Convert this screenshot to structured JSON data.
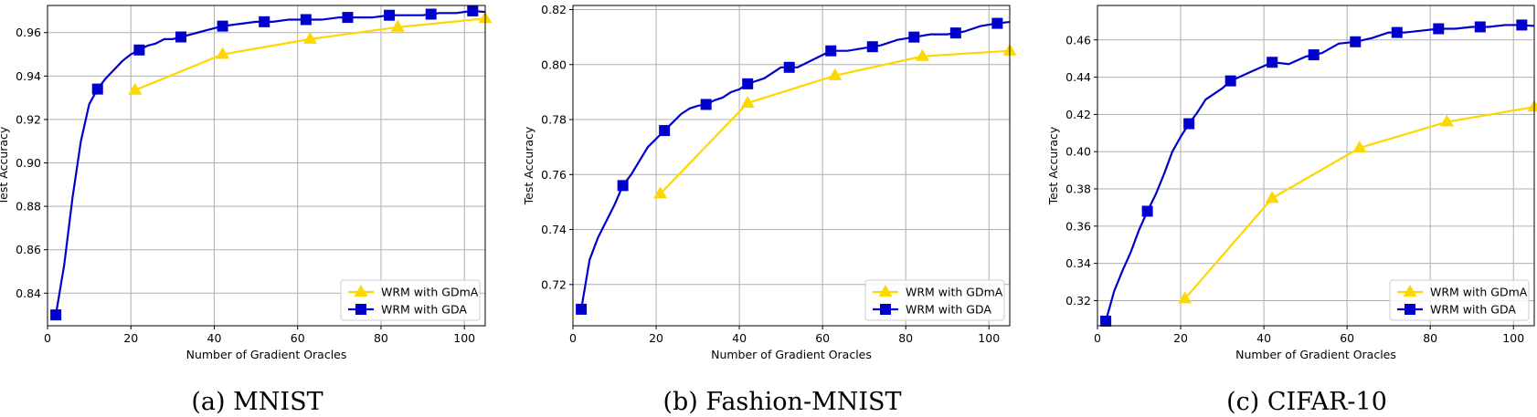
{
  "colors": {
    "gdma": "#ffd700",
    "gda": "#0000cd",
    "grid": "#b0b0b0"
  },
  "chart_data": [
    {
      "type": "line",
      "caption": "(a) MNIST",
      "xlabel": "Number of Gradient Oracles",
      "ylabel": "Test Accuracy",
      "xlim": [
        0,
        105
      ],
      "ylim": [
        0.825,
        0.9725
      ],
      "xticks": [
        0,
        20,
        40,
        60,
        80,
        100
      ],
      "yticks": [
        0.84,
        0.86,
        0.88,
        0.9,
        0.92,
        0.94,
        0.96
      ],
      "ytick_labels": [
        "0.84",
        "0.86",
        "0.88",
        "0.90",
        "0.92",
        "0.94",
        "0.96"
      ],
      "grid": true,
      "legend_position": "lower-right",
      "series": [
        {
          "name": "WRM with GDmA",
          "marker": "triangle",
          "color_key": "gdma",
          "x": [
            21,
            42,
            63,
            84,
            105
          ],
          "y": [
            0.9335,
            0.95,
            0.957,
            0.9625,
            0.9665
          ],
          "marker_x": [
            21,
            42,
            63,
            84,
            105
          ]
        },
        {
          "name": "WRM with GDA",
          "marker": "square",
          "color_key": "gda",
          "x": [
            2,
            4,
            6,
            8,
            10,
            12,
            14,
            16,
            18,
            20,
            22,
            24,
            26,
            28,
            30,
            32,
            34,
            36,
            38,
            40,
            42,
            46,
            50,
            54,
            58,
            62,
            66,
            70,
            74,
            78,
            82,
            86,
            90,
            94,
            98,
            102,
            105
          ],
          "y": [
            0.83,
            0.853,
            0.884,
            0.91,
            0.927,
            0.934,
            0.939,
            0.943,
            0.947,
            0.95,
            0.952,
            0.954,
            0.955,
            0.957,
            0.957,
            0.958,
            0.959,
            0.96,
            0.961,
            0.962,
            0.963,
            0.964,
            0.965,
            0.965,
            0.966,
            0.966,
            0.966,
            0.967,
            0.967,
            0.967,
            0.968,
            0.968,
            0.968,
            0.969,
            0.969,
            0.97,
            0.9695
          ],
          "marker_x": [
            2,
            12,
            22,
            32,
            42,
            52,
            62,
            72,
            82,
            92,
            102
          ]
        }
      ]
    },
    {
      "type": "line",
      "caption": "(b) Fashion-MNIST",
      "xlabel": "Number of Gradient Oracles",
      "ylabel": "Test Accuracy",
      "xlim": [
        0,
        105
      ],
      "ylim": [
        0.705,
        0.8215
      ],
      "xticks": [
        0,
        20,
        40,
        60,
        80,
        100
      ],
      "yticks": [
        0.72,
        0.74,
        0.76,
        0.78,
        0.8,
        0.82
      ],
      "ytick_labels": [
        "0.72",
        "0.74",
        "0.76",
        "0.78",
        "0.80",
        "0.82"
      ],
      "grid": true,
      "legend_position": "lower-right",
      "series": [
        {
          "name": "WRM with GDmA",
          "marker": "triangle",
          "color_key": "gdma",
          "x": [
            21,
            42,
            63,
            84,
            105
          ],
          "y": [
            0.753,
            0.786,
            0.796,
            0.803,
            0.805
          ],
          "marker_x": [
            21,
            42,
            63,
            84,
            105
          ]
        },
        {
          "name": "WRM with GDA",
          "marker": "square",
          "color_key": "gda",
          "x": [
            2,
            4,
            6,
            8,
            10,
            12,
            14,
            16,
            18,
            20,
            22,
            24,
            26,
            28,
            30,
            32,
            34,
            36,
            38,
            40,
            42,
            46,
            50,
            54,
            58,
            62,
            66,
            70,
            74,
            78,
            82,
            86,
            90,
            94,
            98,
            102,
            105
          ],
          "y": [
            0.711,
            0.729,
            0.737,
            0.743,
            0.749,
            0.756,
            0.76,
            0.765,
            0.77,
            0.773,
            0.776,
            0.779,
            0.782,
            0.784,
            0.785,
            0.7855,
            0.787,
            0.788,
            0.79,
            0.791,
            0.793,
            0.795,
            0.799,
            0.799,
            0.802,
            0.805,
            0.805,
            0.806,
            0.807,
            0.809,
            0.81,
            0.811,
            0.811,
            0.812,
            0.814,
            0.815,
            0.8155
          ],
          "marker_x": [
            2,
            12,
            22,
            32,
            42,
            52,
            62,
            72,
            82,
            92,
            102
          ]
        }
      ]
    },
    {
      "type": "line",
      "caption": "(c) CIFAR-10",
      "xlabel": "Number of Gradient Oracles",
      "ylabel": "Test Accuracy",
      "xlim": [
        0,
        105
      ],
      "ylim": [
        0.3065,
        0.4785
      ],
      "xticks": [
        0,
        20,
        40,
        60,
        80,
        100
      ],
      "yticks": [
        0.32,
        0.34,
        0.36,
        0.38,
        0.4,
        0.42,
        0.44,
        0.46
      ],
      "ytick_labels": [
        "0.32",
        "0.34",
        "0.36",
        "0.38",
        "0.40",
        "0.42",
        "0.44",
        "0.46"
      ],
      "grid": true,
      "legend_position": "lower-right",
      "series": [
        {
          "name": "WRM with GDmA",
          "marker": "triangle",
          "color_key": "gdma",
          "x": [
            21,
            42,
            63,
            84,
            105
          ],
          "y": [
            0.321,
            0.375,
            0.402,
            0.416,
            0.424
          ],
          "marker_x": [
            21,
            42,
            63,
            84,
            105
          ]
        },
        {
          "name": "WRM with GDA",
          "marker": "square",
          "color_key": "gda",
          "x": [
            2,
            4,
            6,
            8,
            10,
            12,
            14,
            16,
            18,
            20,
            22,
            24,
            26,
            28,
            30,
            32,
            34,
            36,
            38,
            40,
            42,
            46,
            50,
            54,
            58,
            62,
            66,
            70,
            74,
            78,
            82,
            86,
            90,
            94,
            98,
            102,
            105
          ],
          "y": [
            0.309,
            0.325,
            0.336,
            0.346,
            0.358,
            0.368,
            0.377,
            0.388,
            0.4,
            0.408,
            0.415,
            0.421,
            0.428,
            0.431,
            0.434,
            0.438,
            0.44,
            0.442,
            0.444,
            0.446,
            0.448,
            0.447,
            0.451,
            0.453,
            0.458,
            0.459,
            0.461,
            0.464,
            0.464,
            0.465,
            0.466,
            0.466,
            0.467,
            0.467,
            0.468,
            0.468,
            0.4675
          ],
          "marker_x": [
            2,
            12,
            22,
            32,
            42,
            52,
            62,
            72,
            82,
            92,
            102
          ]
        }
      ]
    }
  ]
}
